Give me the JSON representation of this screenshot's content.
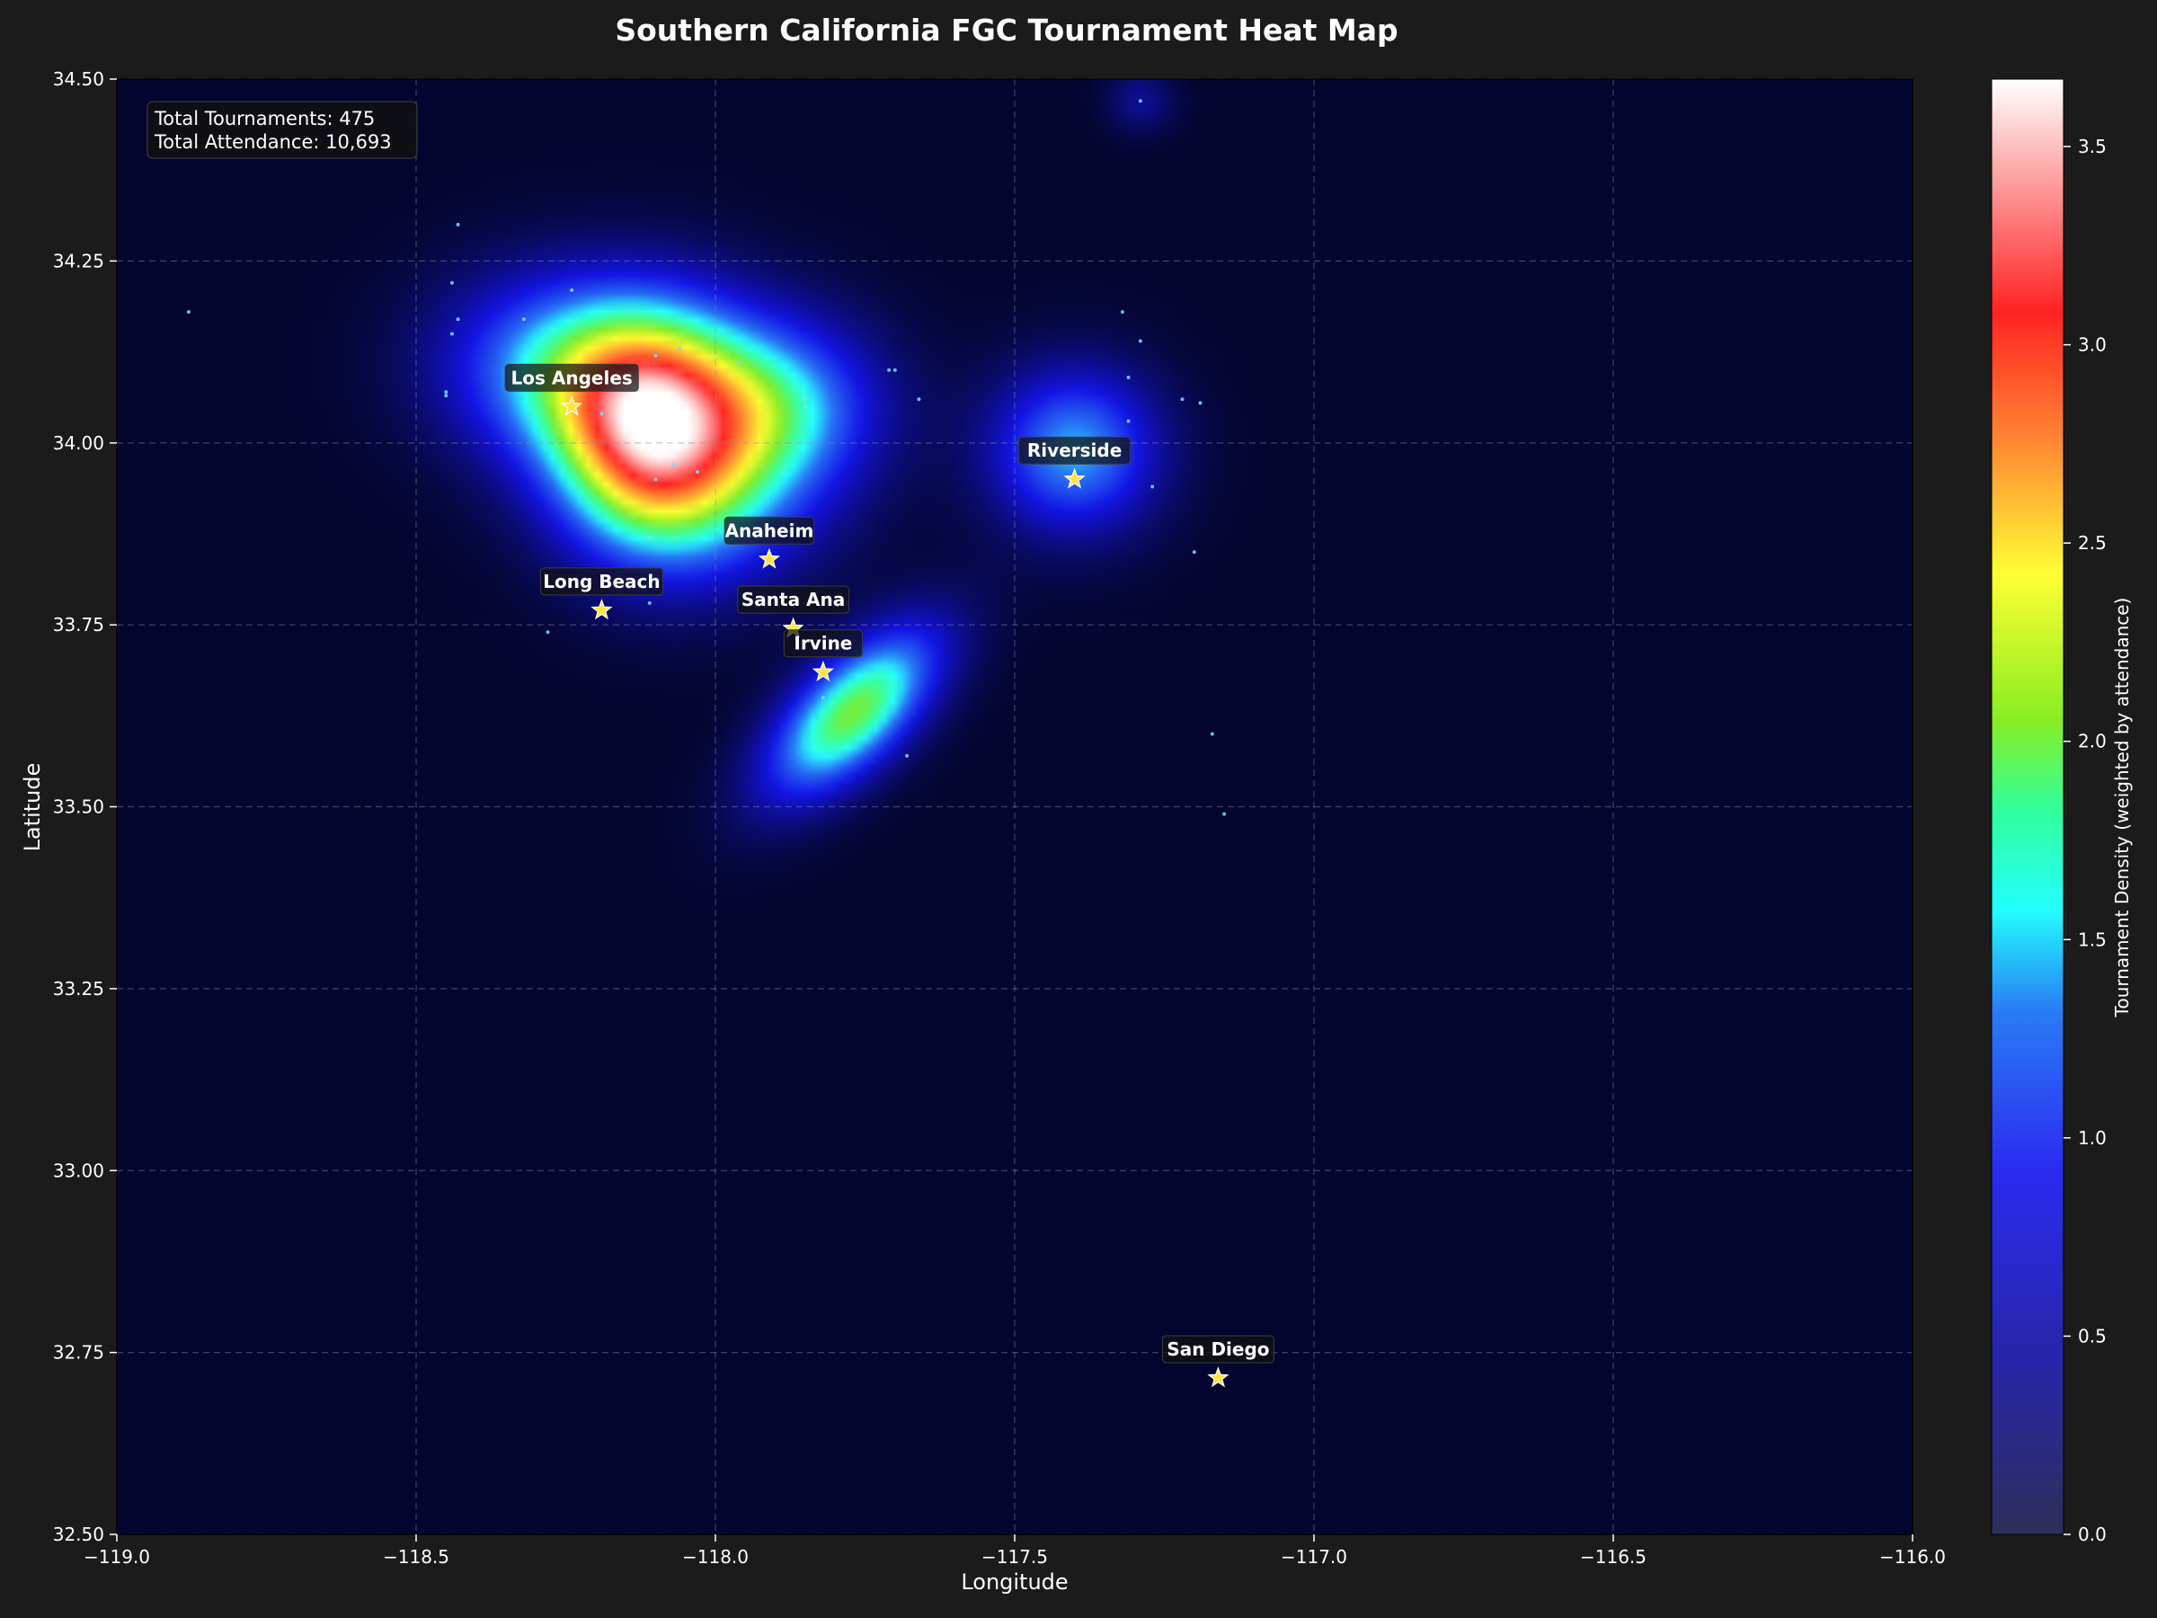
{
  "chart_data": {
    "type": "heatmap",
    "title": "Southern California FGC Tournament Heat Map",
    "xlabel": "Longitude",
    "ylabel": "Latitude",
    "xlim": [
      -119.0,
      -116.0
    ],
    "ylim": [
      32.5,
      34.5
    ],
    "x_ticks": [
      "−119.0",
      "−118.5",
      "−118.0",
      "−117.5",
      "−117.0",
      "−116.5",
      "−116.0"
    ],
    "x_tick_values": [
      -119.0,
      -118.5,
      -118.0,
      -117.5,
      -117.0,
      -116.5,
      -116.0
    ],
    "y_ticks": [
      "32.50",
      "32.75",
      "33.00",
      "33.25",
      "33.50",
      "33.75",
      "34.00",
      "34.25",
      "34.50"
    ],
    "y_tick_values": [
      32.5,
      32.75,
      33.0,
      33.25,
      33.5,
      33.75,
      34.0,
      34.25,
      34.5
    ],
    "grid": true,
    "colorbar": {
      "label": "Tournament Density (weighted by attendance)",
      "range": [
        0.0,
        3.67
      ],
      "ticks": [
        "0.0",
        "0.5",
        "1.0",
        "1.5",
        "2.0",
        "2.5",
        "3.0",
        "3.5"
      ],
      "tick_values": [
        0.0,
        0.5,
        1.0,
        1.5,
        2.0,
        2.5,
        3.0,
        3.5
      ],
      "colormap": [
        "#2e2e5a",
        "#2222dd",
        "#2a6cf5",
        "#22ffff",
        "#33ff88",
        "#88ee22",
        "#ffff33",
        "#ff8833",
        "#ff2222",
        "#ffffff"
      ]
    },
    "stats": {
      "tournaments": "Total Tournaments: 475",
      "attendance": "Total Attendance: 10,693"
    },
    "cities": [
      {
        "name": "Los Angeles",
        "lon": -118.24,
        "lat": 34.05
      },
      {
        "name": "Riverside",
        "lon": -117.4,
        "lat": 33.95
      },
      {
        "name": "Anaheim",
        "lon": -117.91,
        "lat": 33.84
      },
      {
        "name": "Long Beach",
        "lon": -118.19,
        "lat": 33.77
      },
      {
        "name": "Santa Ana",
        "lon": -117.87,
        "lat": 33.745
      },
      {
        "name": "Irvine",
        "lon": -117.82,
        "lat": 33.685
      },
      {
        "name": "San Diego",
        "lon": -117.16,
        "lat": 32.715
      }
    ],
    "density_peaks": [
      {
        "lon": -118.12,
        "lat": 34.02,
        "value": 3.67
      },
      {
        "lon": -117.77,
        "lat": 33.63,
        "value": 2.1
      },
      {
        "lon": -117.4,
        "lat": 33.99,
        "value": 1.5
      },
      {
        "lon": -117.29,
        "lat": 34.47,
        "value": 0.45
      }
    ],
    "tournament_points": [
      [
        -118.43,
        34.3
      ],
      [
        -118.44,
        34.22
      ],
      [
        -118.43,
        34.17
      ],
      [
        -118.44,
        34.15
      ],
      [
        -118.32,
        34.17
      ],
      [
        -118.24,
        34.21
      ],
      [
        -118.45,
        34.07
      ],
      [
        -118.45,
        34.065
      ],
      [
        -118.1,
        34.12
      ],
      [
        -118.06,
        34.13
      ],
      [
        -117.71,
        34.1
      ],
      [
        -117.7,
        34.1
      ],
      [
        -117.85,
        34.05
      ],
      [
        -117.85,
        34.06
      ],
      [
        -117.66,
        34.06
      ],
      [
        -117.32,
        34.18
      ],
      [
        -117.29,
        34.14
      ],
      [
        -117.31,
        34.09
      ],
      [
        -117.22,
        34.06
      ],
      [
        -117.19,
        34.055
      ],
      [
        -117.31,
        34.03
      ],
      [
        -117.27,
        33.94
      ],
      [
        -117.2,
        33.85
      ],
      [
        -118.03,
        33.96
      ],
      [
        -118.1,
        33.95
      ],
      [
        -118.07,
        33.97
      ],
      [
        -118.19,
        34.04
      ],
      [
        -118.11,
        33.87
      ],
      [
        -118.11,
        33.78
      ],
      [
        -118.28,
        33.74
      ],
      [
        -117.82,
        33.65
      ],
      [
        -117.68,
        33.57
      ],
      [
        -117.17,
        33.6
      ],
      [
        -117.15,
        33.49
      ],
      [
        -117.29,
        34.47
      ],
      [
        -118.88,
        34.18
      ],
      [
        -117.96,
        34.11
      ]
    ]
  }
}
